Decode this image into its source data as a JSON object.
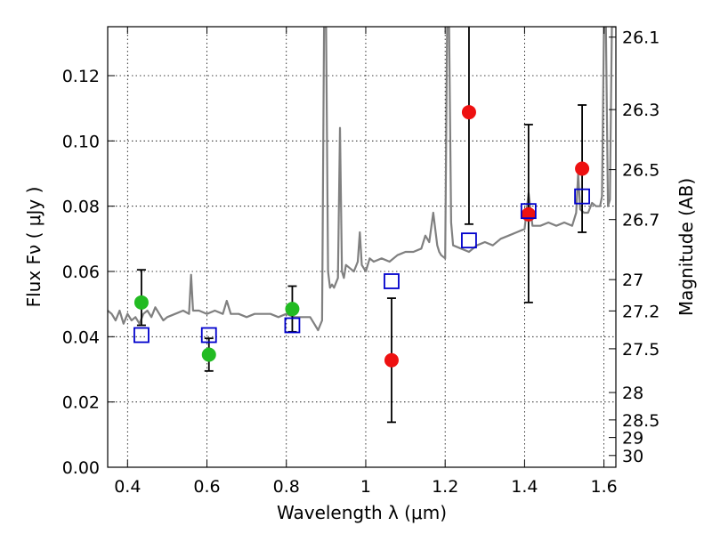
{
  "chart_data": {
    "type": "scatter",
    "title": "",
    "xlabel": "Wavelength  λ (μm)",
    "ylabel": "Flux  Fν  ( μJy )",
    "ylabel_right": "Magnitude (AB)",
    "xlim": [
      0.35,
      1.63
    ],
    "ylim": [
      0.0,
      0.135
    ],
    "grid": true,
    "legend": "none",
    "x_ticks": [
      0.4,
      0.6,
      0.8,
      1.0,
      1.2,
      1.4,
      1.6
    ],
    "x_tick_labels": [
      "0.4",
      "0.6",
      "0.8",
      "1",
      "1.2",
      "1.4",
      "1.6"
    ],
    "y_ticks": [
      0.0,
      0.02,
      0.04,
      0.06,
      0.08,
      0.1,
      0.12
    ],
    "y_tick_labels": [
      "0.00",
      "0.02",
      "0.04",
      "0.06",
      "0.08",
      "0.10",
      "0.12"
    ],
    "mag_ticks": [
      {
        "label": "26.1",
        "flux": 0.1318
      },
      {
        "label": "26.3",
        "flux": 0.1096
      },
      {
        "label": "26.5",
        "flux": 0.0912
      },
      {
        "label": "26.7",
        "flux": 0.0759
      },
      {
        "label": "27",
        "flux": 0.0575
      },
      {
        "label": "27.2",
        "flux": 0.0479
      },
      {
        "label": "27.5",
        "flux": 0.0363
      },
      {
        "label": "28",
        "flux": 0.0229
      },
      {
        "label": "28.5",
        "flux": 0.0145
      },
      {
        "label": "29",
        "flux": 0.0091
      },
      {
        "label": "30",
        "flux": 0.0036
      }
    ],
    "colors": {
      "model": "#808080",
      "green": "#22bb22",
      "red": "#ee1111",
      "square": "#0000cc",
      "errorbar": "#000000"
    },
    "series": [
      {
        "marker": "circle-green",
        "points": [
          {
            "x": 0.435,
            "y": 0.0505,
            "ylo": 0.0435,
            "yhi": 0.0605
          },
          {
            "x": 0.605,
            "y": 0.0345,
            "ylo": 0.0295,
            "yhi": 0.0395
          },
          {
            "x": 0.815,
            "y": 0.0485,
            "ylo": 0.0415,
            "yhi": 0.0555
          }
        ]
      },
      {
        "marker": "circle-red",
        "points": [
          {
            "x": 1.065,
            "y": 0.0328,
            "ylo": 0.0138,
            "yhi": 0.0518
          },
          {
            "x": 1.26,
            "y": 0.1088,
            "ylo": 0.0745,
            "yhi": 0.138
          },
          {
            "x": 1.41,
            "y": 0.0775,
            "ylo": 0.0505,
            "yhi": 0.105
          },
          {
            "x": 1.545,
            "y": 0.0915,
            "ylo": 0.072,
            "yhi": 0.111
          }
        ]
      },
      {
        "marker": "square-blue",
        "points": [
          {
            "x": 0.435,
            "y": 0.0405
          },
          {
            "x": 0.605,
            "y": 0.0405
          },
          {
            "x": 0.815,
            "y": 0.0435
          },
          {
            "x": 1.065,
            "y": 0.057
          },
          {
            "x": 1.26,
            "y": 0.0695
          },
          {
            "x": 1.41,
            "y": 0.0785
          },
          {
            "x": 1.545,
            "y": 0.083
          }
        ]
      },
      {
        "marker": "line-gray",
        "x": [
          0.35,
          0.36,
          0.37,
          0.38,
          0.39,
          0.4,
          0.41,
          0.42,
          0.43,
          0.44,
          0.45,
          0.46,
          0.47,
          0.48,
          0.49,
          0.5,
          0.52,
          0.54,
          0.555,
          0.56,
          0.565,
          0.58,
          0.6,
          0.62,
          0.64,
          0.65,
          0.66,
          0.68,
          0.7,
          0.72,
          0.74,
          0.76,
          0.78,
          0.8,
          0.82,
          0.84,
          0.86,
          0.87,
          0.88,
          0.89,
          0.895,
          0.9,
          0.905,
          0.91,
          0.915,
          0.92,
          0.93,
          0.935,
          0.94,
          0.945,
          0.95,
          0.96,
          0.97,
          0.98,
          0.985,
          0.99,
          1.0,
          1.01,
          1.02,
          1.04,
          1.06,
          1.08,
          1.1,
          1.12,
          1.14,
          1.15,
          1.16,
          1.17,
          1.18,
          1.185,
          1.19,
          1.2,
          1.205,
          1.21,
          1.215,
          1.22,
          1.24,
          1.26,
          1.28,
          1.3,
          1.32,
          1.34,
          1.36,
          1.38,
          1.4,
          1.41,
          1.42,
          1.44,
          1.46,
          1.48,
          1.5,
          1.52,
          1.53,
          1.535,
          1.54,
          1.55,
          1.56,
          1.57,
          1.58,
          1.59,
          1.595,
          1.6,
          1.605,
          1.61,
          1.615,
          1.62,
          1.625,
          1.63
        ],
        "y": [
          0.048,
          0.047,
          0.045,
          0.048,
          0.044,
          0.047,
          0.045,
          0.046,
          0.044,
          0.047,
          0.048,
          0.046,
          0.049,
          0.047,
          0.045,
          0.046,
          0.047,
          0.048,
          0.047,
          0.059,
          0.048,
          0.048,
          0.047,
          0.048,
          0.047,
          0.051,
          0.047,
          0.047,
          0.046,
          0.047,
          0.047,
          0.047,
          0.046,
          0.047,
          0.046,
          0.046,
          0.046,
          0.044,
          0.042,
          0.045,
          0.135,
          0.135,
          0.06,
          0.055,
          0.056,
          0.055,
          0.058,
          0.104,
          0.06,
          0.058,
          0.062,
          0.061,
          0.06,
          0.063,
          0.072,
          0.062,
          0.06,
          0.064,
          0.063,
          0.064,
          0.063,
          0.065,
          0.066,
          0.066,
          0.067,
          0.071,
          0.069,
          0.078,
          0.068,
          0.066,
          0.065,
          0.064,
          0.135,
          0.135,
          0.075,
          0.068,
          0.067,
          0.066,
          0.068,
          0.069,
          0.068,
          0.07,
          0.071,
          0.072,
          0.073,
          0.084,
          0.074,
          0.074,
          0.075,
          0.074,
          0.075,
          0.074,
          0.078,
          0.09,
          0.079,
          0.078,
          0.078,
          0.081,
          0.08,
          0.08,
          0.083,
          0.135,
          0.135,
          0.08,
          0.082,
          0.135,
          0.135,
          0.135
        ]
      }
    ]
  }
}
